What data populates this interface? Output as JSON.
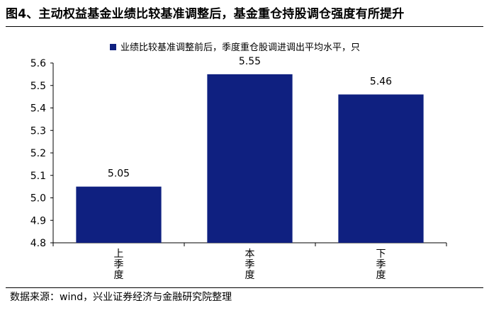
{
  "title": "图4、主动权益基金业绩比较基准调整后，基金重仓持股调仓强度有所提升",
  "source": "数据来源：wind，兴业证券经济与金融研究院整理",
  "chart_data": {
    "type": "bar",
    "categories": [
      "上季度",
      "本季度",
      "下季度"
    ],
    "series": [
      {
        "name": "业绩比较基准调整前后，季度重仓股调进调出平均水平，只",
        "values": [
          5.05,
          5.55,
          5.46
        ]
      }
    ],
    "data_labels": [
      "5.05",
      "5.55",
      "5.46"
    ],
    "ylim": [
      4.8,
      5.6
    ],
    "yticks": [
      "4.8",
      "4.9",
      "5.0",
      "5.1",
      "5.2",
      "5.3",
      "5.4",
      "5.5",
      "5.6"
    ],
    "xlabel": "",
    "ylabel": "",
    "grid": false,
    "legend_position": "top-right",
    "bar_color": "#0f2080"
  }
}
